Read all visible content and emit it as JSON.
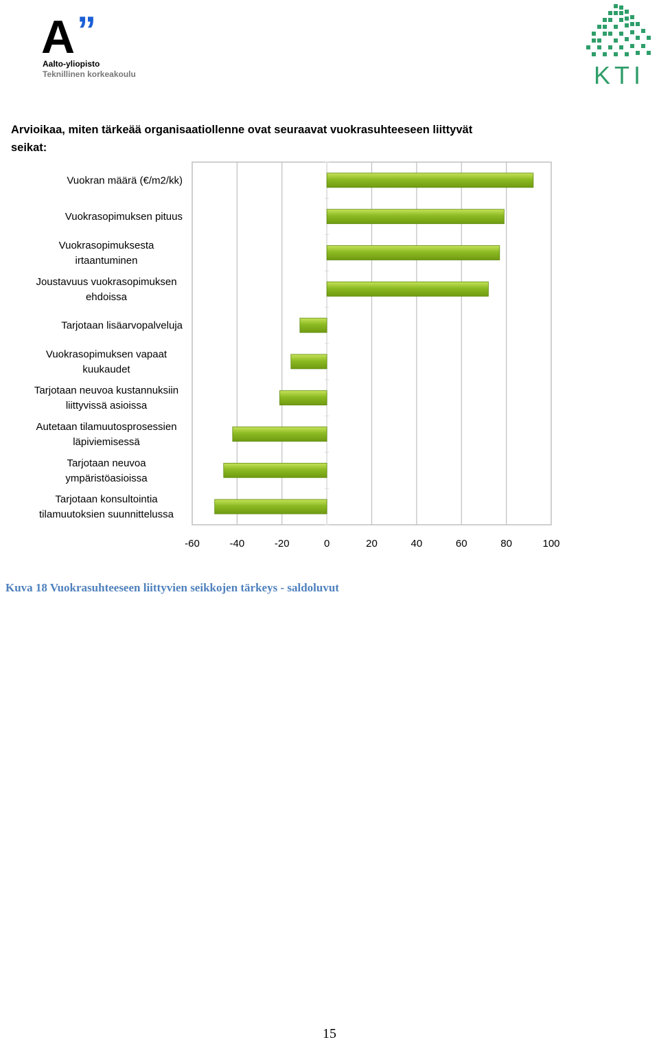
{
  "header": {
    "aalto_logo": {
      "mark": "A",
      "quote": "”",
      "line1": "Aalto-yliopisto",
      "line2": "Teknillinen korkeakoulu"
    },
    "kti_logo": {
      "text": "KTI",
      "icon": "kti-building-icon"
    }
  },
  "heading": "Arvioikaa, miten tärkeää organisaatiollenne ovat seuraavat vuokrasuhteeseen liittyvät seikat:",
  "colors": {
    "bar": "#8cba22",
    "bar_edge": "#5f8a0e",
    "grid": "#bfbfbf",
    "caption": "#4f81bd"
  },
  "chart_data": {
    "type": "bar",
    "orientation": "horizontal",
    "title": "Arvioikaa, miten tärkeää organisaatiollenne ovat seuraavat vuokrasuhteeseen liittyvät seikat:",
    "categories": [
      [
        "Vuokran määrä (€/m2/kk)"
      ],
      [
        "Vuokrasopimuksen pituus"
      ],
      [
        "Vuokrasopimuksesta",
        "irtaantuminen"
      ],
      [
        "Joustavuus vuokrasopimuksen",
        "ehdoissa"
      ],
      [
        "Tarjotaan lisäarvopalveluja"
      ],
      [
        "Vuokrasopimuksen vapaat",
        "kuukaudet"
      ],
      [
        "Tarjotaan neuvoa kustannuksiin",
        "liittyvissä asioissa"
      ],
      [
        "Autetaan tilamuutosprosessien",
        "läpiviemisessä"
      ],
      [
        "Tarjotaan neuvoa",
        "ympäristöasioissa"
      ],
      [
        "Tarjotaan konsultointia",
        "tilamuutoksien suunnittelussa"
      ]
    ],
    "values": [
      92,
      79,
      77,
      72,
      -12,
      -16,
      -21,
      -42,
      -46,
      -50
    ],
    "xlim": [
      -60,
      100
    ],
    "xticks": [
      "-60",
      "-40",
      "-20",
      "0",
      "20",
      "40",
      "60",
      "80",
      "100"
    ],
    "grid": true,
    "xlabel": "",
    "ylabel": "",
    "legend": "none"
  },
  "caption": "Kuva 18 Vuokrasuhteeseen liittyvien seikkojen tärkeys - saldoluvut",
  "page_number": "15"
}
